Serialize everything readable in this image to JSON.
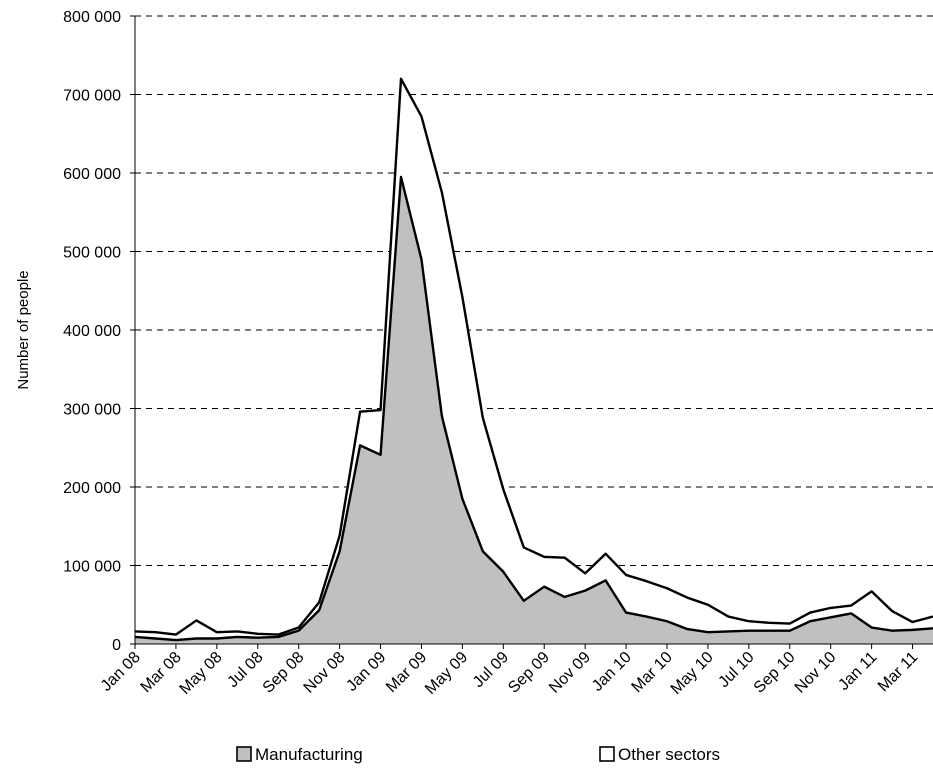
{
  "chart_data": {
    "type": "area",
    "stacked": true,
    "ylabel": "Number of people",
    "ylim": [
      0,
      800000
    ],
    "yticks": [
      0,
      100000,
      200000,
      300000,
      400000,
      500000,
      600000,
      700000,
      800000
    ],
    "ytick_labels": [
      "0",
      "100 000",
      "200 000",
      "300 000",
      "400 000",
      "500 000",
      "600 000",
      "700 000",
      "800 000"
    ],
    "grid": "horizontal-dashed",
    "legend": "bottom",
    "categories": [
      "Jan 08",
      "Feb 08",
      "Mar 08",
      "Apr 08",
      "May 08",
      "Jun 08",
      "Jul 08",
      "Aug 08",
      "Sep 08",
      "Oct 08",
      "Nov 08",
      "Dec 08",
      "Jan 09",
      "Feb 09",
      "Mar 09",
      "Apr 09",
      "May 09",
      "Jun 09",
      "Jul 09",
      "Aug 09",
      "Sep 09",
      "Oct 09",
      "Nov 09",
      "Dec 09",
      "Jan 10",
      "Feb 10",
      "Mar 10",
      "Apr 10",
      "May 10",
      "Jun 10",
      "Jul 10",
      "Aug 10",
      "Sep 10",
      "Oct 10",
      "Nov 10",
      "Dec 10",
      "Jan 11",
      "Feb 11",
      "Mar 11",
      "Apr 11"
    ],
    "xtick_labels": [
      "Jan 08",
      "Mar 08",
      "May 08",
      "Jul 08",
      "Sep 08",
      "Nov 08",
      "Jan 09",
      "Mar 09",
      "May 09",
      "Jul 09",
      "Sep 09",
      "Nov 09",
      "Jan 10",
      "Mar 10",
      "May 10",
      "Jul 10",
      "Sep 10",
      "Nov 10",
      "Jan 11",
      "Mar 11"
    ],
    "series": [
      {
        "name": "Manufacturing",
        "color": "#c0c0c0",
        "values": [
          9000,
          7000,
          5000,
          7000,
          7000,
          9000,
          8000,
          9000,
          17000,
          43000,
          118000,
          253000,
          241000,
          595000,
          490000,
          290000,
          185000,
          118000,
          92000,
          55000,
          73000,
          60000,
          68000,
          81000,
          40000,
          35000,
          29000,
          19000,
          15000,
          16000,
          17000,
          17000,
          17000,
          29000,
          34000,
          39000,
          21000,
          17000,
          18000,
          20000
        ]
      },
      {
        "name": "Other sectors",
        "color": "#ffffff",
        "values": [
          7000,
          8000,
          7000,
          23000,
          8000,
          7000,
          5000,
          3000,
          4000,
          10000,
          20000,
          43000,
          57000,
          125000,
          182000,
          285000,
          257000,
          170000,
          105000,
          68000,
          38000,
          50000,
          22000,
          34000,
          48000,
          45000,
          42000,
          40000,
          35000,
          19000,
          12000,
          10000,
          9000,
          11000,
          12000,
          10000,
          46000,
          25000,
          10000,
          15000
        ]
      }
    ]
  }
}
